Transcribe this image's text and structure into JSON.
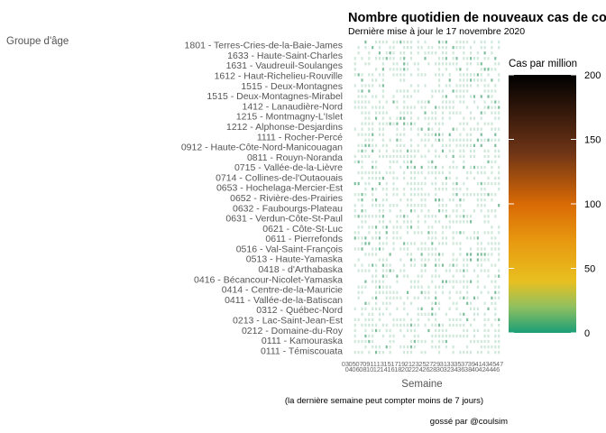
{
  "chart_data": {
    "type": "heatmap",
    "title": "Nombre quotidien de nouveaux cas de co",
    "subtitle": "Dernière mise à jour le 17 novembre 2020",
    "xlabel": "Semaine",
    "ylabel": "Groupe d'âge",
    "caption": "(la dernière semaine peut compter moins de 7 jours)",
    "credit": "gossé par @coulsim",
    "legend": {
      "title": "Cas par million",
      "min": 0,
      "max": 200,
      "ticks": [
        0,
        50,
        100,
        150,
        200
      ],
      "colors": [
        "#1a9e77",
        "#e8c020",
        "#e89a10",
        "#d96a05",
        "#6e3417",
        "#000000"
      ]
    },
    "y_categories": [
      "1801 - Terres-Cries-de-la-Baie-James",
      "1633 - Haute-Saint-Charles",
      "1631 - Vaudreuil-Soulanges",
      "1612 - Haut-Richelieu-Rouville",
      "1515 - Deux-Montagnes",
      "1515 - Deux-Montagnes-Mirabel",
      "1412 - Lanaudière-Nord",
      "1215 - Montmagny-L'Islet",
      "1212 - Alphonse-Desjardins",
      "1111 - Rocher-Percé",
      "0912 - Haute-Côte-Nord-Manicouagan",
      "0811 - Rouyn-Noranda",
      "0715 - Vallée-de-la-Lièvre",
      "0714 - Collines-de-l'Outaouais",
      "0653 - Hochelaga-Mercier-Est",
      "0652 - Rivière-des-Prairies",
      "0632 - Faubourgs-Plateau",
      "0631 - Verdun-Côte-St-Paul",
      "0621 - Côte-St-Luc",
      "0611 - Pierrefonds",
      "0516 - Val-Saint-François",
      "0513 - Haute-Yamaska",
      "0418 - d'Arthabaska",
      "0416 - Bécancour-Nicolet-Yamaska",
      "0414 - Centre-de-la-Mauricie",
      "0411 - Vallée-de-la-Batiscan",
      "0312 - Québec-Nord",
      "0213 - Lac-Saint-Jean-Est",
      "0212 - Domaine-du-Roy",
      "0111 - Kamouraska",
      "0111 - Témiscouata"
    ],
    "x_tick_labels": [
      "03",
      "04",
      "05",
      "06",
      "07",
      "08",
      "09",
      "10",
      "11",
      "12",
      "13",
      "14",
      "15",
      "16",
      "17",
      "18",
      "19",
      "20",
      "21",
      "22",
      "23",
      "24",
      "25",
      "26",
      "27",
      "28",
      "29",
      "30",
      "31",
      "32",
      "33",
      "34",
      "35",
      "36",
      "37",
      "38",
      "39",
      "40",
      "41",
      "42",
      "43",
      "44",
      "45",
      "46",
      "47"
    ],
    "values_note": "",
    "grid": true
  }
}
